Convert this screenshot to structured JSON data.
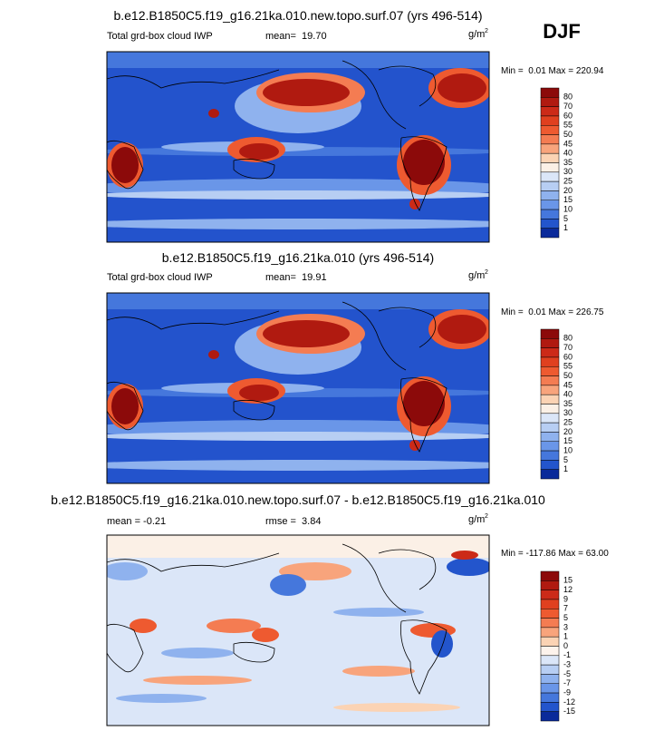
{
  "season": "DJF",
  "panels": [
    {
      "title": "b.e12.B1850C5.f19_g16.21ka.010.new.topo.surf.07 (yrs 496-514)",
      "left": "Total grd-box cloud IWP",
      "center": "mean=  19.70",
      "units": "g/m",
      "units_exp": "2",
      "minmax": "Min =  0.01 Max = 220.94",
      "levels": [
        80,
        70,
        60,
        55,
        50,
        45,
        40,
        35,
        30,
        25,
        20,
        15,
        10,
        5,
        1
      ],
      "colors": [
        "#8c0a0a",
        "#b01a10",
        "#cc2a18",
        "#e0401f",
        "#ee5a30",
        "#f47c52",
        "#f8a47c",
        "#fbd3b4",
        "#fbf0e6",
        "#dbe6f8",
        "#b7cef3",
        "#8fb2ee",
        "#6a96e8",
        "#4577dc",
        "#2355cc",
        "#0a2a9a"
      ]
    },
    {
      "title": "b.e12.B1850C5.f19_g16.21ka.010 (yrs 496-514)",
      "left": "Total grd-box cloud IWP",
      "center": "mean=  19.91",
      "units": "g/m",
      "units_exp": "2",
      "minmax": "Min =  0.01 Max = 226.75",
      "levels": [
        80,
        70,
        60,
        55,
        50,
        45,
        40,
        35,
        30,
        25,
        20,
        15,
        10,
        5,
        1
      ],
      "colors": [
        "#8c0a0a",
        "#b01a10",
        "#cc2a18",
        "#e0401f",
        "#ee5a30",
        "#f47c52",
        "#f8a47c",
        "#fbd3b4",
        "#fbf0e6",
        "#dbe6f8",
        "#b7cef3",
        "#8fb2ee",
        "#6a96e8",
        "#4577dc",
        "#2355cc",
        "#0a2a9a"
      ]
    },
    {
      "title": "b.e12.B1850C5.f19_g16.21ka.010.new.topo.surf.07 - b.e12.B1850C5.f19_g16.21ka.010",
      "left": "mean = -0.21",
      "center": "rmse =  3.84",
      "units": "g/m",
      "units_exp": "2",
      "minmax": "Min = -117.86 Max = 63.00",
      "levels": [
        15,
        12,
        9,
        7,
        5,
        3,
        1,
        0,
        -1,
        -3,
        -5,
        -7,
        -9,
        -12,
        -15
      ],
      "colors": [
        "#8c0a0a",
        "#b01a10",
        "#cc2a18",
        "#e0401f",
        "#ee5a30",
        "#f47c52",
        "#f8a47c",
        "#fbd3b4",
        "#fdf3ec",
        "#dbe6f8",
        "#b7cef3",
        "#8fb2ee",
        "#6a96e8",
        "#4577dc",
        "#2355cc",
        "#0a2a9a"
      ]
    }
  ]
}
